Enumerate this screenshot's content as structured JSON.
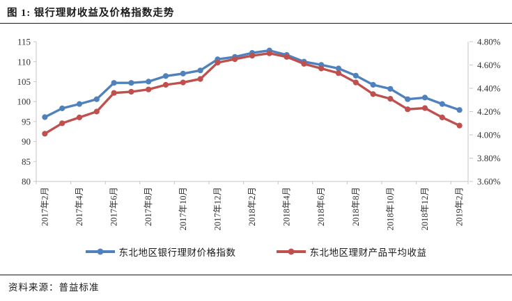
{
  "page": {
    "title": "图 1: 银行理财收益及价格指数走势",
    "source": "资料来源：普益标准"
  },
  "chart_data": {
    "type": "line",
    "title": "银行理财收益及价格指数走势",
    "x": [
      "2017年2月",
      "2017年3月",
      "2017年4月",
      "2017年5月",
      "2017年6月",
      "2017年7月",
      "2017年8月",
      "2017年9月",
      "2017年10月",
      "2017年11月",
      "2017年12月",
      "2018年1月",
      "2018年2月",
      "2018年3月",
      "2018年4月",
      "2018年5月",
      "2018年6月",
      "2018年7月",
      "2018年8月",
      "2018年9月",
      "2018年10月",
      "2018年11月",
      "2018年12月",
      "2019年1月",
      "2019年2月"
    ],
    "x_tick_labels": [
      "2017年2月",
      "2017年4月",
      "2017年6月",
      "2017年8月",
      "2017年10月",
      "2017年12月",
      "2018年2月",
      "2018年4月",
      "2018年6月",
      "2018年8月",
      "2018年10月",
      "2018年12月",
      "2019年2月"
    ],
    "series": [
      {
        "name": "东北地区银行理财价格指数",
        "axis": "left",
        "color": "#4F81BD",
        "values": [
          96.1,
          98.3,
          99.4,
          100.6,
          104.7,
          104.7,
          105.0,
          106.4,
          107.0,
          107.8,
          110.6,
          111.2,
          112.2,
          112.8,
          111.7,
          110.0,
          109.2,
          108.3,
          106.5,
          104.2,
          103.2,
          100.6,
          101.0,
          99.4,
          97.9
        ]
      },
      {
        "name": "东北地区理财产品平均收益",
        "axis": "right",
        "color": "#C0504D",
        "values": [
          4.01,
          4.1,
          4.15,
          4.2,
          4.36,
          4.37,
          4.39,
          4.43,
          4.45,
          4.48,
          4.62,
          4.65,
          4.68,
          4.7,
          4.67,
          4.61,
          4.57,
          4.53,
          4.45,
          4.35,
          4.31,
          4.22,
          4.23,
          4.15,
          4.08
        ]
      }
    ],
    "left_axis": {
      "min": 80,
      "max": 115,
      "step": 5,
      "tick_labels": [
        "80",
        "85",
        "90",
        "95",
        "100",
        "105",
        "110",
        "115"
      ]
    },
    "right_axis": {
      "min": 3.6,
      "max": 4.8,
      "step": 0.2,
      "tick_labels": [
        "3.60%",
        "3.80%",
        "4.00%",
        "4.20%",
        "4.40%",
        "4.60%",
        "4.80%"
      ]
    },
    "grid": false,
    "legend_position": "bottom",
    "axis_color": "#c6c6c6",
    "tick_label_color": "#333333"
  }
}
